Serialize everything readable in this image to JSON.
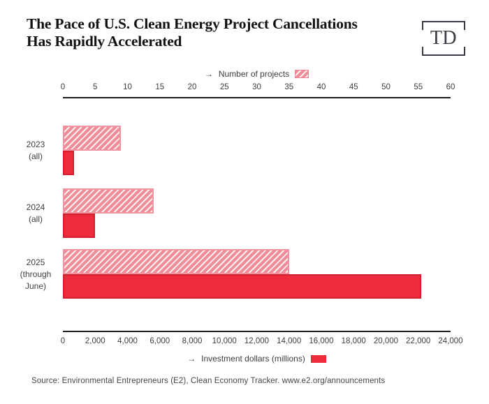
{
  "header": {
    "title_line1": "The Pace of U.S. Clean Energy Project Cancellations",
    "title_line2": "Has Rapidly Accelerated",
    "logo_text": "TD"
  },
  "legend_top": {
    "arrow": "→",
    "label": "Number of projects"
  },
  "legend_bottom": {
    "arrow": "→",
    "label": "Investment dollars (millions)"
  },
  "chart_data": {
    "type": "bar",
    "orientation": "horizontal",
    "title": "The Pace of U.S. Clean Energy Project Cancellations Has Rapidly Accelerated",
    "categories": [
      "2023 (all)",
      "2024 (all)",
      "2025 (through June)"
    ],
    "category_lines": [
      [
        "2023",
        "(all)"
      ],
      [
        "2024",
        "(all)"
      ],
      [
        "2025",
        "(through",
        "June)"
      ]
    ],
    "series": [
      {
        "name": "Number of projects",
        "style": "hatched",
        "axis": "top",
        "values": [
          9,
          14,
          35
        ]
      },
      {
        "name": "Investment dollars (millions)",
        "style": "solid",
        "axis": "bottom",
        "values": [
          700,
          2000,
          22200
        ]
      }
    ],
    "top_axis": {
      "label": "Number of projects",
      "min": 0,
      "max": 60,
      "tick_step": 5,
      "ticks": [
        "0",
        "5",
        "10",
        "15",
        "20",
        "25",
        "30",
        "35",
        "40",
        "45",
        "50",
        "55",
        "60"
      ]
    },
    "bottom_axis": {
      "label": "Investment dollars (millions)",
      "min": 0,
      "max": 24000,
      "tick_step": 2000,
      "ticks": [
        "0",
        "2,000",
        "4,000",
        "6,000",
        "8,000",
        "10,000",
        "12,000",
        "14,000",
        "16,000",
        "18,000",
        "20,000",
        "22,000",
        "24,000"
      ]
    },
    "legend_position": "top-and-bottom",
    "grid": false
  },
  "colors": {
    "solid_bar": "#ee2b3c",
    "solid_bar_border": "#d22031",
    "hatch_stripe": "#f08c9a",
    "hatch_background": "#fdf1f2",
    "hatch_border": "#f2949f",
    "axis_line": "#1c1c1c",
    "text_dark": "#111111",
    "text_gray": "#3d3d3d"
  },
  "source": {
    "text": "Source: Environmental Entrepreneurs (E2), Clean Economy Tracker. www.e2.org/announcements"
  }
}
